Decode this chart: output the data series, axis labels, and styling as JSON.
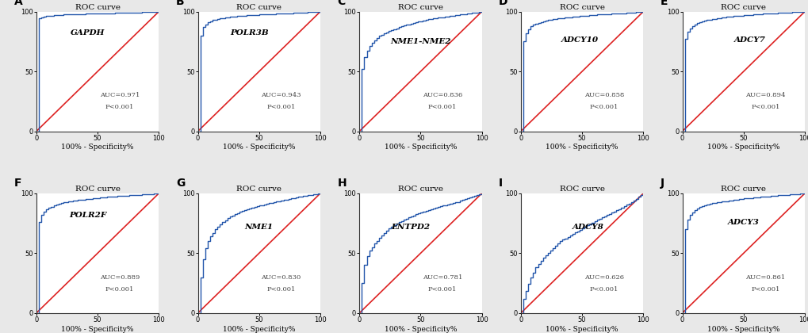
{
  "panels": [
    {
      "label": "A",
      "gene": "GAPDH",
      "auc": "0.971",
      "p": "P<0.001",
      "style": "sharp_rise"
    },
    {
      "label": "B",
      "gene": "POLR3B",
      "auc": "0.943",
      "p": "P<0.001",
      "style": "gradual_high"
    },
    {
      "label": "C",
      "gene": "NME1-NME2",
      "auc": "0.836",
      "p": "P<0.001",
      "style": "irregular"
    },
    {
      "label": "D",
      "gene": "ADCY10",
      "auc": "0.858",
      "p": "P<0.001",
      "style": "stepped_high"
    },
    {
      "label": "E",
      "gene": "ADCY7",
      "auc": "0.894",
      "p": "P<0.001",
      "style": "stepped_high2"
    },
    {
      "label": "F",
      "gene": "POLR2F",
      "auc": "0.889",
      "p": "P<0.001",
      "style": "flat_high"
    },
    {
      "label": "G",
      "gene": "NME1",
      "auc": "0.830",
      "p": "P<0.001",
      "style": "moderate_gradual"
    },
    {
      "label": "H",
      "gene": "ENTPD2",
      "auc": "0.781",
      "p": "P<0.001",
      "style": "near_diagonal"
    },
    {
      "label": "I",
      "gene": "ADCY8",
      "auc": "0.626",
      "p": "P<0.001",
      "style": "near_diagonal_low"
    },
    {
      "label": "J",
      "gene": "ADCY3",
      "auc": "0.861",
      "p": "P<0.001",
      "style": "stepped_j"
    }
  ],
  "roc_curve_color": "#2255aa",
  "diagonal_color": "#dd2222",
  "title": "ROC curve",
  "xlabel": "100% - Specificity%",
  "title_fontsize": 7.5,
  "label_fontsize": 6.5,
  "gene_fontsize": 7.5,
  "auc_fontsize": 6.0,
  "axis_tick_fontsize": 6.0,
  "panel_label_fontsize": 10,
  "figure_bg": "#e8e8e8"
}
